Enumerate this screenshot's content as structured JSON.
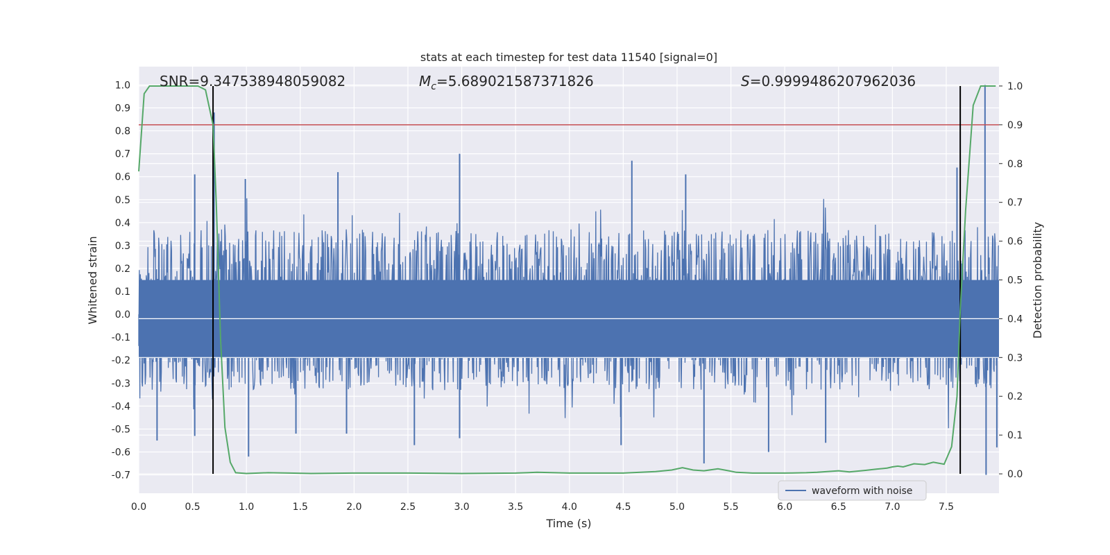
{
  "chart_data": {
    "type": "line",
    "title": "stats at each timestep for test data 11540 [signal=0]",
    "xlabel": "Time (s)",
    "ylabel_left": "Whitened strain",
    "ylabel_right": "Detection probability",
    "xlim": [
      0.0,
      7.99
    ],
    "ylim_left": [
      -0.78,
      1.08
    ],
    "ylim_right": [
      -0.05,
      1.05
    ],
    "x_ticks": [
      "0.0",
      "0.5",
      "1.0",
      "1.5",
      "2.0",
      "2.5",
      "3.0",
      "3.5",
      "4.0",
      "4.5",
      "5.0",
      "5.5",
      "6.0",
      "6.5",
      "7.0",
      "7.5"
    ],
    "y_ticks_left": [
      "-0.7",
      "-0.6",
      "-0.5",
      "-0.4",
      "-0.3",
      "-0.2",
      "-0.1",
      "0.0",
      "0.1",
      "0.2",
      "0.3",
      "0.4",
      "0.5",
      "0.6",
      "0.7",
      "0.8",
      "0.9",
      "1.0"
    ],
    "y_ticks_right": [
      "0.0",
      "0.1",
      "0.2",
      "0.3",
      "0.4",
      "0.5",
      "0.6",
      "0.7",
      "0.8",
      "0.9",
      "1.0"
    ],
    "grid": true,
    "legend": {
      "position": "lower-right",
      "entries": [
        "waveform with noise"
      ]
    },
    "annotations": {
      "snr": "SNR=9.347538948059082",
      "mc_symbol": "M",
      "mc_sub": "c",
      "mc_value": "=5.689021587371826",
      "s_symbol": "S",
      "s_value": "=0.9999486207962036"
    },
    "threshold": {
      "value": 0.9,
      "axis": "right",
      "color": "#c44e52"
    },
    "vertical_lines": [
      0.69,
      7.63
    ],
    "series": [
      {
        "name": "waveform with noise",
        "axis": "left",
        "color": "#4c72b0",
        "noise_envelope": [
          -0.25,
          0.29
        ],
        "peaks": [
          {
            "x": 0.52,
            "y": 0.61
          },
          {
            "x": 0.7,
            "y": 0.88
          },
          {
            "x": 0.99,
            "y": 0.59
          },
          {
            "x": 1.85,
            "y": 0.62
          },
          {
            "x": 2.98,
            "y": 0.7
          },
          {
            "x": 4.58,
            "y": 0.67
          },
          {
            "x": 5.08,
            "y": 0.61
          },
          {
            "x": 7.6,
            "y": 0.64
          },
          {
            "x": 7.86,
            "y": 1.0
          },
          {
            "x": 1.02,
            "y": -0.62
          },
          {
            "x": 0.17,
            "y": -0.55
          },
          {
            "x": 0.52,
            "y": -0.53
          },
          {
            "x": 1.46,
            "y": -0.52
          },
          {
            "x": 1.93,
            "y": -0.52
          },
          {
            "x": 2.56,
            "y": -0.57
          },
          {
            "x": 2.98,
            "y": -0.54
          },
          {
            "x": 5.25,
            "y": -0.65
          },
          {
            "x": 5.85,
            "y": -0.6
          },
          {
            "x": 7.87,
            "y": -0.7
          },
          {
            "x": 7.97,
            "y": -0.58
          },
          {
            "x": 4.48,
            "y": -0.57
          },
          {
            "x": 6.38,
            "y": -0.56
          }
        ]
      },
      {
        "name": "detection probability",
        "axis": "right",
        "color": "#55a868",
        "x": [
          0.0,
          0.05,
          0.1,
          0.2,
          0.3,
          0.4,
          0.5,
          0.55,
          0.62,
          0.69,
          0.72,
          0.76,
          0.8,
          0.85,
          0.9,
          1.0,
          1.2,
          1.4,
          1.6,
          2.0,
          2.5,
          3.0,
          3.5,
          3.7,
          4.0,
          4.5,
          4.8,
          4.95,
          5.05,
          5.15,
          5.25,
          5.38,
          5.48,
          5.55,
          5.7,
          6.0,
          6.2,
          6.3,
          6.5,
          6.6,
          6.75,
          6.85,
          6.95,
          7.0,
          7.05,
          7.1,
          7.2,
          7.3,
          7.38,
          7.48,
          7.55,
          7.6,
          7.63,
          7.68,
          7.75,
          7.82,
          7.9,
          7.96
        ],
        "y": [
          0.78,
          0.98,
          1.0,
          1.0,
          1.0,
          1.0,
          1.0,
          1.0,
          0.99,
          0.9,
          0.7,
          0.35,
          0.12,
          0.03,
          0.003,
          0.001,
          0.003,
          0.002,
          0.001,
          0.002,
          0.002,
          0.001,
          0.002,
          0.004,
          0.002,
          0.002,
          0.006,
          0.01,
          0.016,
          0.01,
          0.008,
          0.013,
          0.008,
          0.004,
          0.002,
          0.002,
          0.003,
          0.004,
          0.008,
          0.005,
          0.009,
          0.012,
          0.015,
          0.018,
          0.02,
          0.018,
          0.026,
          0.024,
          0.03,
          0.025,
          0.07,
          0.2,
          0.42,
          0.68,
          0.95,
          1.0,
          1.0,
          1.0
        ]
      }
    ]
  }
}
